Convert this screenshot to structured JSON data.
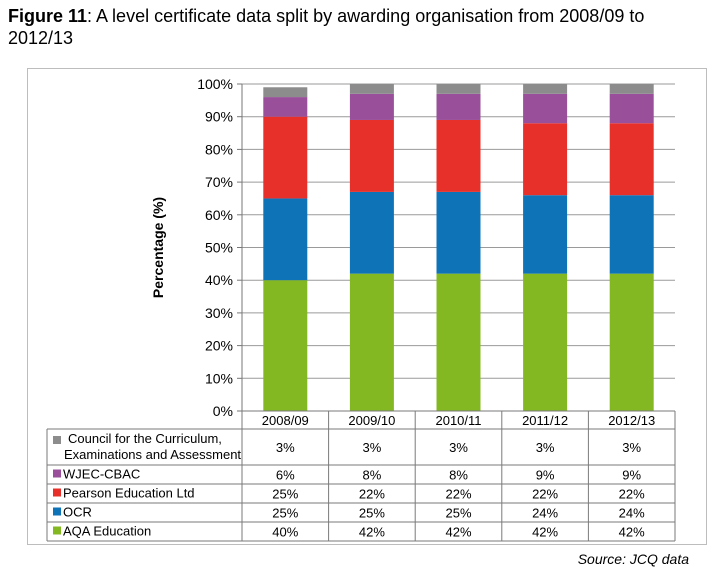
{
  "title": {
    "label": "Figure 11",
    "text": ": A level certificate data split by awarding organisation from 2008/09 to 2012/13"
  },
  "source": "Source: JCQ data",
  "chart_data": {
    "type": "bar",
    "stacked": true,
    "ylabel": "Percentage (%)",
    "ylim": [
      0,
      100
    ],
    "ytick_labels": [
      "0%",
      "10%",
      "20%",
      "30%",
      "40%",
      "50%",
      "60%",
      "70%",
      "80%",
      "90%",
      "100%"
    ],
    "grid": true,
    "categories": [
      "2008/09",
      "2009/10",
      "2010/11",
      "2011/12",
      "2012/13"
    ],
    "series": [
      {
        "name": "AQA Education",
        "color": "#84b822",
        "values": [
          40,
          42,
          42,
          42,
          42
        ],
        "labels": [
          "40%",
          "42%",
          "42%",
          "42%",
          "42%"
        ]
      },
      {
        "name": "OCR",
        "color": "#0f73b8",
        "values": [
          25,
          25,
          25,
          24,
          24
        ],
        "labels": [
          "25%",
          "25%",
          "25%",
          "24%",
          "24%"
        ]
      },
      {
        "name": "Pearson Education Ltd",
        "color": "#e8302a",
        "values": [
          25,
          22,
          22,
          22,
          22
        ],
        "labels": [
          "25%",
          "22%",
          "22%",
          "22%",
          "22%"
        ]
      },
      {
        "name": "WJEC-CBAC",
        "color": "#9a4f9a",
        "values": [
          6,
          8,
          8,
          9,
          9
        ],
        "labels": [
          "6%",
          "8%",
          "8%",
          "9%",
          "9%"
        ]
      },
      {
        "name": "Council for the Curriculum, Examinations and Assessment",
        "name_lines": [
          "Council for the Curriculum,",
          "Examinations and Assessment"
        ],
        "color": "#8c8c8c",
        "values": [
          3,
          3,
          3,
          3,
          3
        ],
        "labels": [
          "3%",
          "3%",
          "3%",
          "3%",
          "3%"
        ]
      }
    ]
  }
}
